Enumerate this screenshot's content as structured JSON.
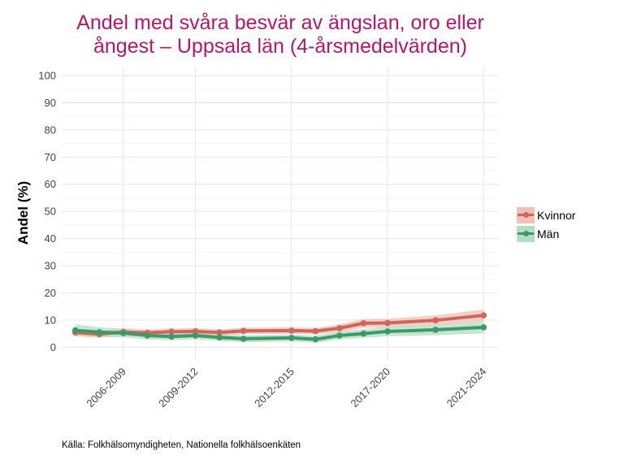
{
  "chart_data": {
    "type": "line",
    "title_line1": "Andel med svåra besvär av ängslan, oro eller",
    "title_line2": "ångest – Uppsala län (4-årsmedelvärden)",
    "ylabel": "Andel (%)",
    "xlabel": "",
    "caption": "Källa: Folkhälsomyndigheten, Nationella folkhälsoenkäten",
    "ylim": [
      -5,
      103
    ],
    "yticks": [
      0,
      10,
      20,
      30,
      40,
      50,
      60,
      70,
      80,
      90,
      100
    ],
    "periods": [
      "2004-2007",
      "2005-2008",
      "2006-2009",
      "2007-2010",
      "2008-2011",
      "2009-2012",
      "2010-2013",
      "2011-2014",
      "2012-2015",
      "2013-2016",
      "2014-2017",
      "2015-2018",
      "2016-2019",
      "2017-2020",
      "2018-2021",
      "2019-2022",
      "2020-2023",
      "2021-2024"
    ],
    "xtick_labels": [
      "2006-2009",
      "2009-2012",
      "2012-2015",
      "2017-2020",
      "2021-2024"
    ],
    "x_positions": [
      2004,
      2005,
      2006,
      2007,
      2008,
      2009,
      2010,
      2011,
      2013,
      2014,
      2015,
      2016,
      2017,
      2019,
      2020,
      2021
    ],
    "x_domain": [
      2003.4,
      2021.6
    ],
    "xticks": [
      2006,
      2009,
      2013,
      2017,
      2021
    ],
    "legend": [
      "Kvinnor",
      "Män"
    ],
    "series": [
      {
        "name": "Kvinnor",
        "color": "#d0665a",
        "band_color": "#f0c0b8",
        "values": [
          5.4,
          4.8,
          5.6,
          5.3,
          5.7,
          5.8,
          5.4,
          6.0,
          6.1,
          5.9,
          7.0,
          8.8,
          8.9,
          9.9,
          11.7
        ],
        "x": [
          2004,
          2005,
          2006,
          2007,
          2008,
          2009,
          2010,
          2011,
          2013,
          2014,
          2015,
          2016,
          2017,
          2019,
          2021
        ],
        "lower": [
          4.0,
          3.4,
          4.2,
          4.1,
          4.5,
          4.6,
          4.2,
          4.8,
          4.9,
          4.7,
          5.6,
          7.2,
          7.3,
          8.1,
          9.5
        ],
        "upper": [
          6.8,
          6.2,
          7.0,
          6.5,
          6.9,
          7.0,
          6.6,
          7.2,
          7.3,
          7.1,
          8.4,
          10.4,
          10.5,
          11.7,
          13.9
        ]
      },
      {
        "name": "Män",
        "color": "#3c9a66",
        "band_color": "#b5dcc4",
        "values": [
          6.2,
          5.5,
          5.2,
          4.3,
          3.9,
          4.3,
          3.6,
          3.1,
          3.4,
          2.9,
          4.3,
          5.0,
          5.8,
          6.4,
          7.3
        ],
        "x": [
          2004,
          2005,
          2006,
          2007,
          2008,
          2009,
          2010,
          2011,
          2013,
          2014,
          2015,
          2016,
          2017,
          2019,
          2021
        ],
        "lower": [
          4.2,
          3.7,
          3.6,
          2.9,
          2.5,
          2.9,
          2.3,
          1.8,
          2.1,
          1.6,
          2.8,
          3.4,
          4.0,
          4.4,
          5.1
        ],
        "upper": [
          8.4,
          7.3,
          6.8,
          5.7,
          5.3,
          5.7,
          4.9,
          4.4,
          4.7,
          4.2,
          5.8,
          6.6,
          7.6,
          8.4,
          9.5
        ]
      }
    ]
  }
}
